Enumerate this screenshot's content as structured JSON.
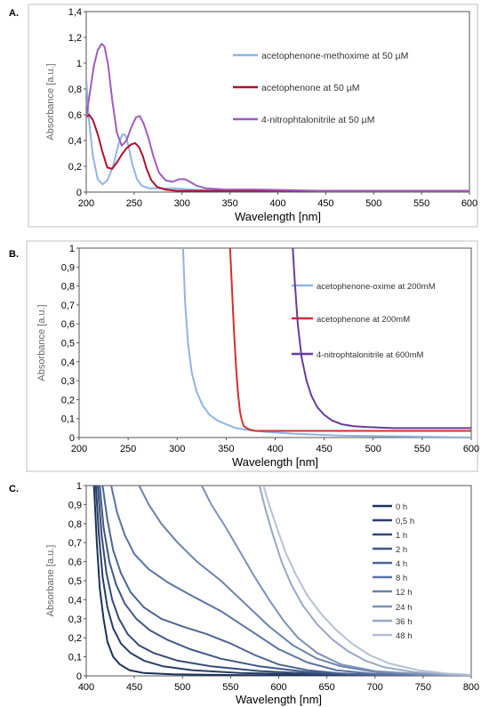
{
  "chart_data": [
    {
      "panel": "A.",
      "type": "line",
      "xlabel": "Wavelength [nm]",
      "ylabel": "Absorbance [a.u.]",
      "xlim": [
        200,
        600
      ],
      "ylim": [
        0,
        1.4
      ],
      "xticks": [
        "200",
        "250",
        "300",
        "350",
        "400",
        "450",
        "500",
        "550",
        "600"
      ],
      "yticks": [
        "0",
        "0,2",
        "0,4",
        "0,6",
        "0,8",
        "1",
        "1,2",
        "1,4"
      ],
      "legend_position": "top-right",
      "series": [
        {
          "name": "acetophenone-methoxime at 50 µM",
          "color": "#8fb4e3",
          "x": [
            200,
            203,
            207,
            212,
            217,
            222,
            228,
            234,
            238,
            241,
            244,
            248,
            253,
            258,
            265,
            275,
            290,
            310,
            350,
            400,
            500,
            600
          ],
          "y": [
            0.88,
            0.55,
            0.28,
            0.1,
            0.06,
            0.09,
            0.2,
            0.38,
            0.45,
            0.44,
            0.36,
            0.22,
            0.1,
            0.05,
            0.03,
            0.03,
            0.03,
            0.02,
            0.01,
            0.01,
            0.01,
            0.01
          ]
        },
        {
          "name": "acetophenone at 50 µM",
          "color": "#b0102a",
          "x": [
            200,
            203,
            207,
            212,
            217,
            222,
            227,
            232,
            237,
            242,
            247,
            251,
            255,
            259,
            263,
            268,
            274,
            282,
            295,
            320,
            360,
            450,
            600
          ],
          "y": [
            0.58,
            0.6,
            0.56,
            0.45,
            0.31,
            0.19,
            0.18,
            0.23,
            0.29,
            0.34,
            0.37,
            0.38,
            0.35,
            0.28,
            0.18,
            0.09,
            0.04,
            0.02,
            0.01,
            0.01,
            0.01,
            0.01,
            0.01
          ]
        },
        {
          "name": "4-nitrophtalonitrile at 50 µM",
          "color": "#a05ac0",
          "x": [
            200,
            204,
            208,
            212,
            216,
            219,
            223,
            227,
            232,
            237,
            242,
            247,
            252,
            256,
            260,
            265,
            270,
            276,
            283,
            290,
            297,
            303,
            308,
            315,
            325,
            345,
            380,
            450,
            600
          ],
          "y": [
            0.58,
            0.78,
            0.98,
            1.1,
            1.15,
            1.13,
            0.98,
            0.72,
            0.46,
            0.36,
            0.4,
            0.5,
            0.58,
            0.59,
            0.53,
            0.42,
            0.28,
            0.15,
            0.09,
            0.08,
            0.1,
            0.1,
            0.08,
            0.05,
            0.03,
            0.02,
            0.02,
            0.01,
            0.01
          ]
        }
      ]
    },
    {
      "panel": "B.",
      "type": "line",
      "xlabel": "Wavelength [nm]",
      "ylabel": "Absorbance [a.u.]",
      "xlim": [
        200,
        600
      ],
      "ylim": [
        0,
        1
      ],
      "xticks": [
        "200",
        "250",
        "300",
        "350",
        "400",
        "450",
        "500",
        "550",
        "600"
      ],
      "yticks": [
        "0",
        "0,1",
        "0,2",
        "0,3",
        "0,4",
        "0,5",
        "0,6",
        "0,7",
        "0,8",
        "0,9",
        "1"
      ],
      "legend_position": "right",
      "series": [
        {
          "name": "acetophenone-oxime at 200mM",
          "color": "#8fb4e3",
          "x": [
            306,
            308,
            311,
            315,
            320,
            326,
            333,
            341,
            350,
            360,
            372,
            390,
            420,
            470,
            540,
            600
          ],
          "y": [
            1.0,
            0.72,
            0.5,
            0.34,
            0.24,
            0.17,
            0.12,
            0.09,
            0.07,
            0.05,
            0.04,
            0.03,
            0.02,
            0.01,
            0.005,
            0.0
          ]
        },
        {
          "name": "acetophenone at 200mM",
          "color": "#d03030",
          "x": [
            354,
            356,
            358,
            360,
            362,
            364,
            366,
            368,
            371,
            375,
            380,
            400,
            450,
            500,
            600
          ],
          "y": [
            1.0,
            0.78,
            0.56,
            0.38,
            0.24,
            0.14,
            0.09,
            0.06,
            0.05,
            0.04,
            0.035,
            0.035,
            0.035,
            0.035,
            0.035
          ]
        },
        {
          "name": "4-nitrophtalonitrile at 600mM",
          "color": "#6a3aa0",
          "x": [
            418,
            420,
            423,
            427,
            432,
            437,
            443,
            450,
            458,
            468,
            480,
            495,
            520,
            560,
            600
          ],
          "y": [
            1.0,
            0.82,
            0.6,
            0.42,
            0.3,
            0.22,
            0.16,
            0.12,
            0.09,
            0.07,
            0.06,
            0.055,
            0.05,
            0.05,
            0.05
          ]
        }
      ]
    },
    {
      "panel": "C.",
      "type": "line",
      "xlabel": "Wavelength [nm]",
      "ylabel": "Absorbane [a.u.]",
      "xlim": [
        400,
        800
      ],
      "ylim": [
        0,
        1
      ],
      "xticks": [
        "400",
        "450",
        "500",
        "550",
        "600",
        "650",
        "700",
        "750",
        "800"
      ],
      "yticks": [
        "0",
        "0,1",
        "0,2",
        "0,3",
        "0,4",
        "0,5",
        "0,6",
        "0,7",
        "0,8",
        "0,9",
        "1"
      ],
      "legend_position": "right",
      "series": [
        {
          "name": "0 h",
          "color": "#1c3058",
          "x": [
            408,
            411,
            414,
            418,
            422,
            428,
            435,
            445,
            460,
            490,
            550,
            650,
            800
          ],
          "y": [
            1.0,
            0.7,
            0.46,
            0.3,
            0.18,
            0.1,
            0.06,
            0.03,
            0.015,
            0.008,
            0.004,
            0.002,
            0.0
          ]
        },
        {
          "name": "0,5 h",
          "color": "#273d68",
          "x": [
            410,
            413,
            417,
            422,
            428,
            436,
            446,
            460,
            480,
            510,
            560,
            650,
            800
          ],
          "y": [
            1.0,
            0.75,
            0.52,
            0.36,
            0.25,
            0.17,
            0.12,
            0.08,
            0.05,
            0.03,
            0.015,
            0.005,
            0.0
          ]
        },
        {
          "name": "1 h",
          "color": "#334a78",
          "x": [
            412,
            416,
            421,
            427,
            434,
            443,
            455,
            470,
            495,
            530,
            580,
            650,
            800
          ],
          "y": [
            1.0,
            0.74,
            0.54,
            0.4,
            0.3,
            0.22,
            0.16,
            0.12,
            0.08,
            0.05,
            0.025,
            0.008,
            0.0
          ]
        },
        {
          "name": "2 h",
          "color": "#3f5786",
          "x": [
            414,
            418,
            424,
            431,
            440,
            452,
            466,
            484,
            508,
            540,
            580,
            630,
            700,
            800
          ],
          "y": [
            1.0,
            0.78,
            0.6,
            0.48,
            0.38,
            0.3,
            0.24,
            0.19,
            0.14,
            0.09,
            0.05,
            0.02,
            0.006,
            0.0
          ]
        },
        {
          "name": "4 h",
          "color": "#4c6594",
          "x": [
            417,
            422,
            428,
            436,
            446,
            460,
            478,
            500,
            525,
            550,
            575,
            600,
            630,
            670,
            720,
            800
          ],
          "y": [
            1.0,
            0.82,
            0.66,
            0.54,
            0.44,
            0.36,
            0.3,
            0.26,
            0.22,
            0.17,
            0.11,
            0.06,
            0.03,
            0.01,
            0.003,
            0.0
          ]
        },
        {
          "name": "8 h",
          "color": "#5a73a1",
          "x": [
            426,
            432,
            440,
            450,
            465,
            485,
            510,
            540,
            570,
            600,
            630,
            660,
            700,
            750,
            800
          ],
          "y": [
            1.0,
            0.86,
            0.74,
            0.64,
            0.56,
            0.49,
            0.42,
            0.34,
            0.24,
            0.14,
            0.07,
            0.03,
            0.01,
            0.003,
            0.0
          ]
        },
        {
          "name": "12 h",
          "color": "#6a82ac",
          "x": [
            455,
            465,
            478,
            495,
            515,
            540,
            565,
            590,
            615,
            640,
            665,
            700,
            750,
            800
          ],
          "y": [
            1.0,
            0.9,
            0.8,
            0.7,
            0.6,
            0.5,
            0.38,
            0.26,
            0.16,
            0.09,
            0.05,
            0.02,
            0.005,
            0.0
          ]
        },
        {
          "name": "24 h",
          "color": "#7b91b6",
          "x": [
            520,
            530,
            545,
            560,
            575,
            590,
            605,
            620,
            640,
            665,
            700,
            750,
            800
          ],
          "y": [
            1.0,
            0.9,
            0.78,
            0.65,
            0.52,
            0.4,
            0.29,
            0.2,
            0.12,
            0.06,
            0.025,
            0.008,
            0.0
          ]
        },
        {
          "name": "36 h",
          "color": "#95a7c4",
          "x": [
            580,
            586,
            594,
            603,
            613,
            625,
            640,
            656,
            672,
            690,
            710,
            740,
            770,
            800
          ],
          "y": [
            1.0,
            0.88,
            0.74,
            0.6,
            0.48,
            0.37,
            0.27,
            0.19,
            0.13,
            0.08,
            0.045,
            0.02,
            0.008,
            0.0
          ]
        },
        {
          "name": "48 h",
          "color": "#b4c0d4",
          "x": [
            584,
            590,
            598,
            607,
            618,
            630,
            645,
            660,
            676,
            694,
            715,
            745,
            775,
            800
          ],
          "y": [
            1.0,
            0.9,
            0.78,
            0.65,
            0.53,
            0.42,
            0.32,
            0.24,
            0.17,
            0.11,
            0.065,
            0.03,
            0.012,
            0.005
          ]
        }
      ]
    }
  ]
}
